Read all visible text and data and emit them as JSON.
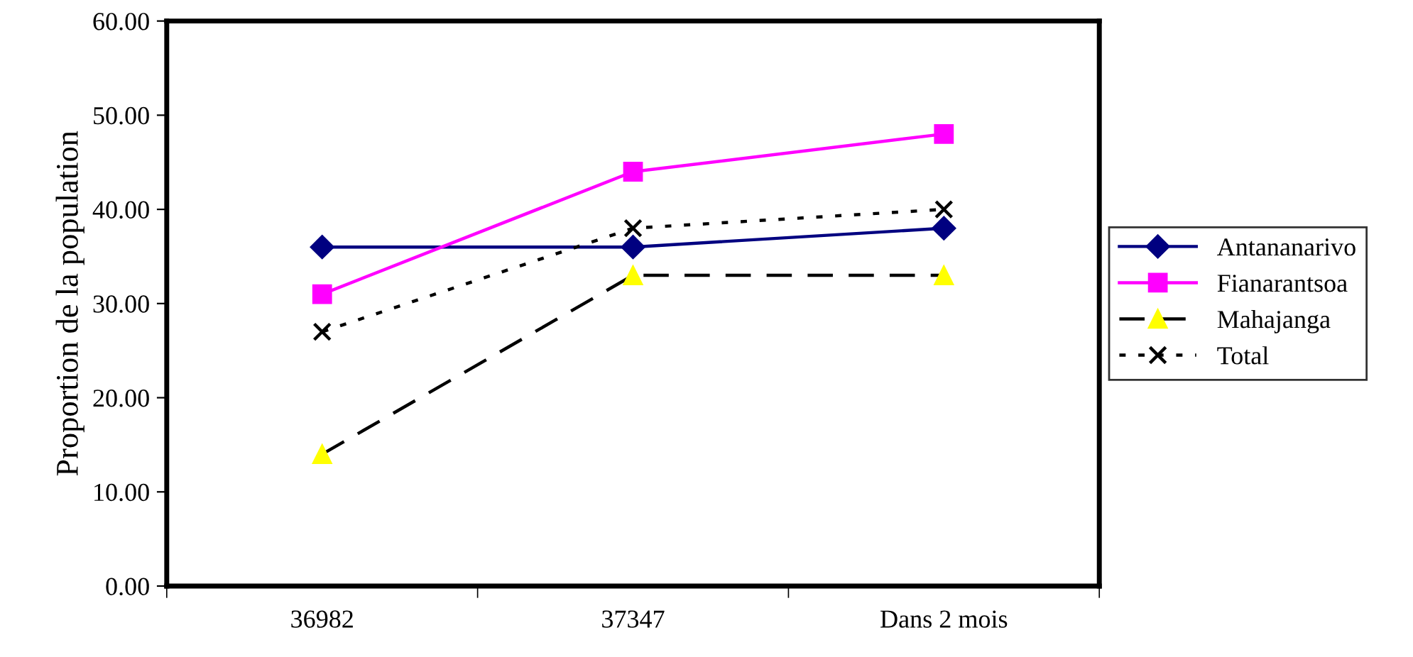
{
  "chart_data": {
    "type": "line",
    "ylabel": "Proportion de la population",
    "categories": [
      "36982",
      "37347",
      "Dans 2 mois"
    ],
    "series": [
      {
        "name": "Antananarivo",
        "color": "#000080",
        "marker": "diamond",
        "line_style": "solid",
        "values": [
          36,
          36,
          38
        ]
      },
      {
        "name": "Fianarantsoa",
        "color": "#ff00ff",
        "marker": "square",
        "line_style": "solid",
        "values": [
          31,
          44,
          48
        ]
      },
      {
        "name": "Mahajanga",
        "color": "#ffff00",
        "marker": "triangle",
        "line_style": "dashed",
        "values": [
          14,
          33,
          33
        ]
      },
      {
        "name": "Total",
        "color": "#000000",
        "marker": "cross",
        "line_style": "dotted",
        "values": [
          27,
          38,
          40
        ]
      }
    ],
    "ylim": [
      0,
      60
    ],
    "yticks": [
      {
        "value": 0,
        "label": "0.00"
      },
      {
        "value": 10,
        "label": "10.00"
      },
      {
        "value": 20,
        "label": "20.00"
      },
      {
        "value": 30,
        "label": "30.00"
      },
      {
        "value": 40,
        "label": "40.00"
      },
      {
        "value": 50,
        "label": "50.00"
      },
      {
        "value": 60,
        "label": "60.00"
      }
    ],
    "grid": false,
    "legend": "right"
  }
}
